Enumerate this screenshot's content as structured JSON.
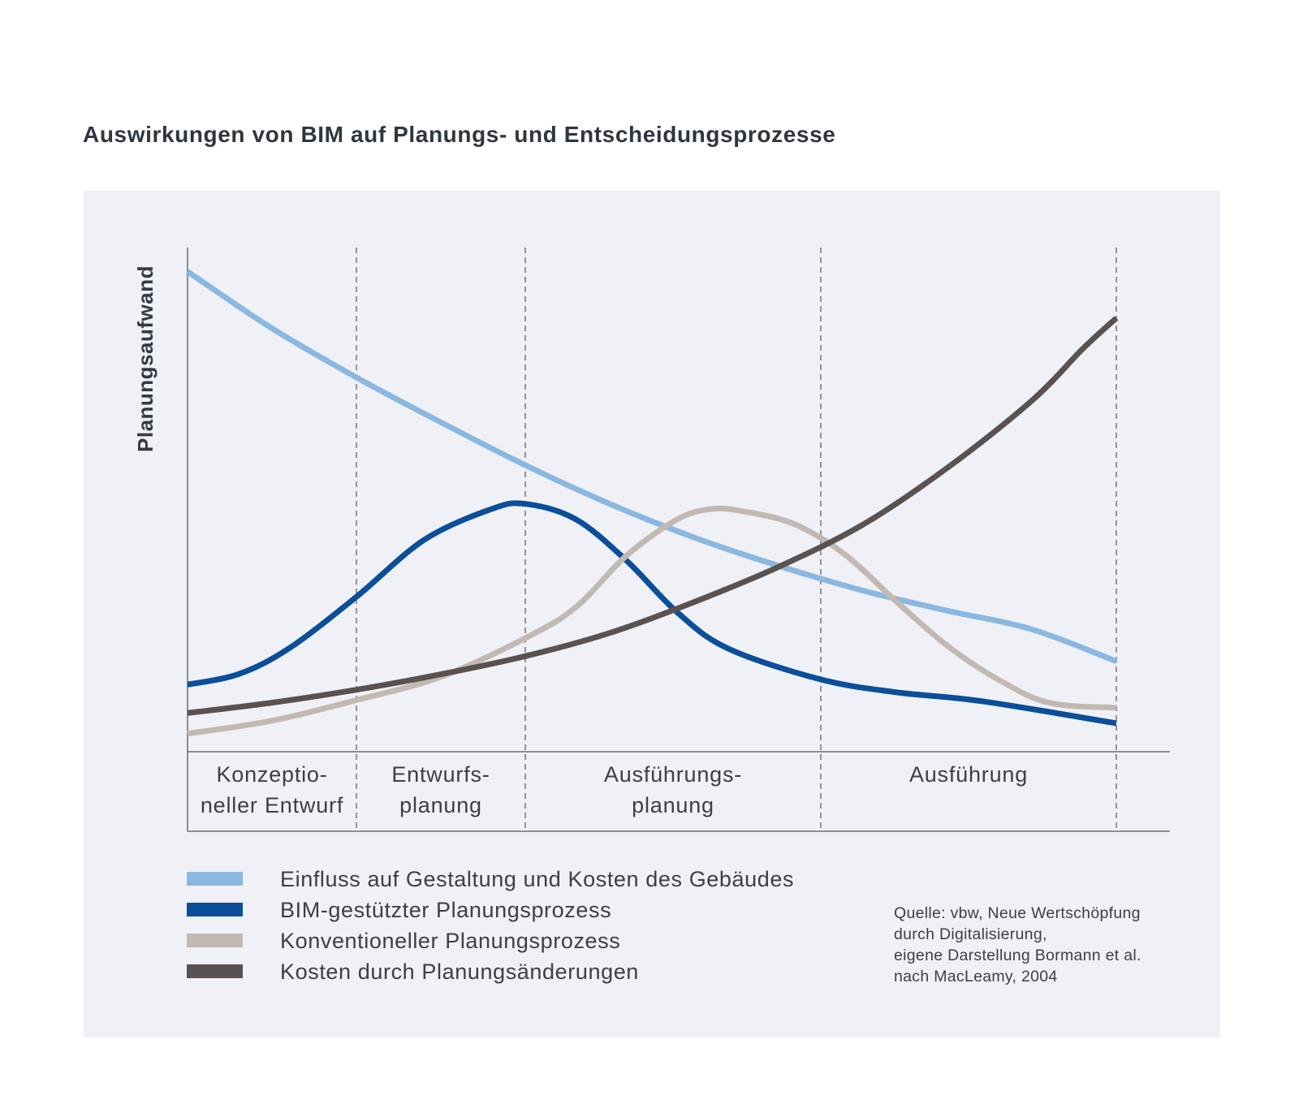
{
  "chart_data": {
    "type": "line",
    "title": "Auswirkungen von BIM auf Planungs- und Entscheidungsprozesse",
    "ylabel": "Planungsaufwand",
    "xlabel": "",
    "phases": [
      {
        "lines": [
          "Konzeptio-",
          "neller Entwurf"
        ]
      },
      {
        "lines": [
          "Entwurfs-",
          "planung"
        ]
      },
      {
        "lines": [
          "Ausführungs-",
          "planung"
        ]
      },
      {
        "lines": [
          "Ausführung"
        ]
      }
    ],
    "xlim": [
      0,
      5.5
    ],
    "ylim": [
      0,
      100
    ],
    "x_boundaries": [
      0,
      1,
      2,
      3.75,
      5.5
    ],
    "grid": false,
    "legend_position": "bottom-left",
    "series": [
      {
        "name": "Einfluss auf Gestaltung und Kosten des Gebäudes",
        "color": "#8ab8e0",
        "x": [
          0,
          0.5,
          1,
          1.5,
          2,
          2.5,
          3,
          3.5,
          4,
          4.5,
          5,
          5.5
        ],
        "values": [
          93,
          82,
          72.5,
          63.8,
          55.5,
          48,
          41.5,
          36,
          31.2,
          27.3,
          23.7,
          17.5
        ]
      },
      {
        "name": "BIM-gestützter Planungsprozess",
        "color": "#0b4f9a",
        "x": [
          0,
          0.3,
          0.6,
          1,
          1.4,
          1.8,
          2,
          2.3,
          2.6,
          2.9,
          3.2,
          3.75,
          4.2,
          4.7,
          5.5
        ],
        "values": [
          13,
          15,
          20,
          30,
          41,
          47,
          48,
          45,
          37,
          27,
          20,
          14,
          11.5,
          9.8,
          5.5
        ]
      },
      {
        "name": "Konventioneller Planungsprozess",
        "color": "#c2b9b3",
        "x": [
          0,
          0.5,
          1,
          1.5,
          2,
          2.3,
          2.6,
          2.9,
          3.1,
          3.3,
          3.6,
          3.9,
          4.2,
          4.5,
          4.8,
          5.1,
          5.5
        ],
        "values": [
          3.5,
          6,
          10,
          14.5,
          22,
          28,
          38,
          45,
          47,
          46.5,
          44,
          38,
          29,
          20.5,
          14,
          9.5,
          8.5
        ]
      },
      {
        "name": "Kosten durch Planungsänderungen",
        "color": "#5a5250",
        "x": [
          0,
          0.5,
          1,
          1.5,
          2,
          2.5,
          3,
          3.5,
          4,
          4.5,
          5,
          5.3,
          5.5
        ],
        "values": [
          7.5,
          9.5,
          12,
          15,
          18.5,
          23,
          29,
          35.8,
          44,
          55,
          68,
          78,
          84
        ]
      }
    ]
  },
  "source": {
    "lines": [
      "Quelle: vbw, Neue Wertschöpfung",
      "durch Digitalisierung,",
      "eigene Darstellung Bormann et al.",
      "nach MacLeamy, 2004"
    ]
  }
}
